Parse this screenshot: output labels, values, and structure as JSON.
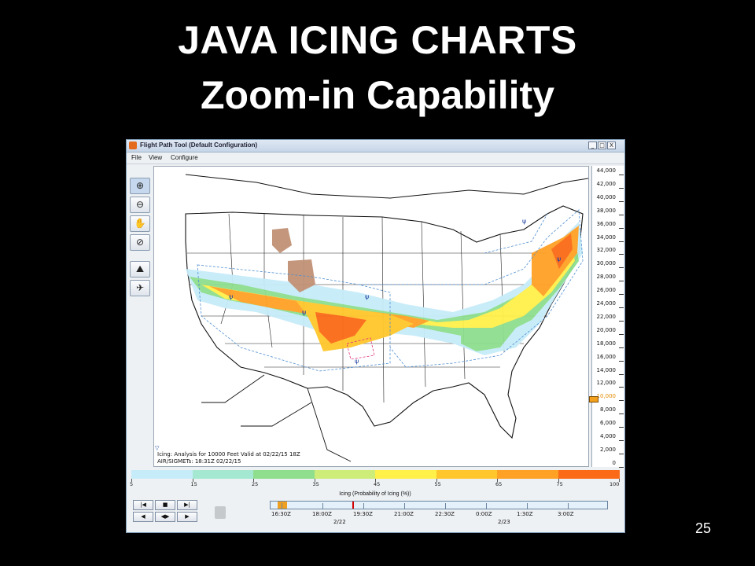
{
  "slide": {
    "title_line1": "JAVA ICING CHARTS",
    "title_line2": "Zoom-in Capability",
    "page_number": "25"
  },
  "window": {
    "title": "Flight Path Tool (Default Configuration)",
    "controls": {
      "minimize": "_",
      "maximize": "□",
      "close": "X"
    },
    "menu": [
      "File",
      "View",
      "Configure"
    ]
  },
  "toolbar": {
    "tools": [
      {
        "name": "zoom-in-icon",
        "glyph": "⊕"
      },
      {
        "name": "zoom-out-icon",
        "glyph": "⊖"
      },
      {
        "name": "pan-hand-icon",
        "glyph": "✋"
      },
      {
        "name": "reset-view-icon",
        "glyph": "⊘"
      },
      {
        "name": "vertical-cross-section-icon",
        "glyph": "⛰"
      },
      {
        "name": "flight-profile-icon",
        "glyph": "✈"
      }
    ]
  },
  "map": {
    "info_line1": "Icing: Analysis for 10000 Feet Valid at 02/22/15 18Z",
    "info_line2": "AIR/SIGMETs: 18:31Z 02/22/15"
  },
  "altitude_scale": {
    "labels": [
      "44,000",
      "42,000",
      "40,000",
      "38,000",
      "36,000",
      "34,000",
      "32,000",
      "30,000",
      "28,000",
      "26,000",
      "24,000",
      "22,000",
      "20,000",
      "18,000",
      "16,000",
      "14,000",
      "12,000",
      "10,000",
      "8,000",
      "6,000",
      "4,000",
      "2,000",
      "0"
    ],
    "selected": "10,000"
  },
  "legend": {
    "title": "Icing (Probability of Icing (%))",
    "ticks": [
      "5",
      "15",
      "25",
      "35",
      "45",
      "55",
      "65",
      "75",
      "100"
    ],
    "colors": [
      "#c7ecf9",
      "#a4e8d1",
      "#8ede8e",
      "#cdec78",
      "#fff04a",
      "#ffc72c",
      "#ffa125",
      "#fb6a17"
    ]
  },
  "animation": {
    "buttons": [
      {
        "name": "first-frame-button",
        "glyph": "|◀"
      },
      {
        "name": "stop-button",
        "glyph": "■"
      },
      {
        "name": "last-frame-button",
        "glyph": "▶|"
      },
      {
        "name": "step-back-button",
        "glyph": "◀"
      },
      {
        "name": "step-both-button",
        "glyph": "◀▶"
      },
      {
        "name": "step-forward-button",
        "glyph": "▶"
      }
    ]
  },
  "timeline": {
    "times": [
      "16:30Z",
      "18:00Z",
      "19:30Z",
      "21:00Z",
      "22:30Z",
      "0:00Z",
      "1:30Z",
      "3:00Z"
    ],
    "dates": [
      "2/22",
      "2/23"
    ]
  }
}
